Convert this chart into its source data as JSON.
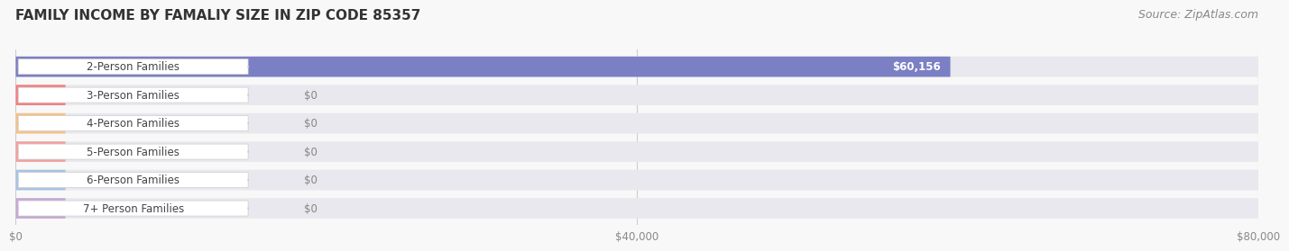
{
  "title": "FAMILY INCOME BY FAMALIY SIZE IN ZIP CODE 85357",
  "source": "Source: ZipAtlas.com",
  "categories": [
    "2-Person Families",
    "3-Person Families",
    "4-Person Families",
    "5-Person Families",
    "6-Person Families",
    "7+ Person Families"
  ],
  "values": [
    60156,
    0,
    0,
    0,
    0,
    0
  ],
  "bar_colors": [
    "#7b7fc4",
    "#f08080",
    "#f5c18a",
    "#f4a0a0",
    "#a8c4e0",
    "#c4a8d4"
  ],
  "label_colors": [
    "#7b7fc4",
    "#f08080",
    "#f5c18a",
    "#f4a0a0",
    "#a8c4e0",
    "#c4a8d4"
  ],
  "value_labels": [
    "$60,156",
    "$0",
    "$0",
    "$0",
    "$0",
    "$0"
  ],
  "xlim": [
    0,
    80000
  ],
  "xticks": [
    0,
    40000,
    80000
  ],
  "xtick_labels": [
    "$0",
    "$40,000",
    "$80,000"
  ],
  "background_color": "#f8f8f8",
  "bar_background": "#e8e8ee",
  "title_fontsize": 11,
  "source_fontsize": 9,
  "label_fontsize": 8.5
}
